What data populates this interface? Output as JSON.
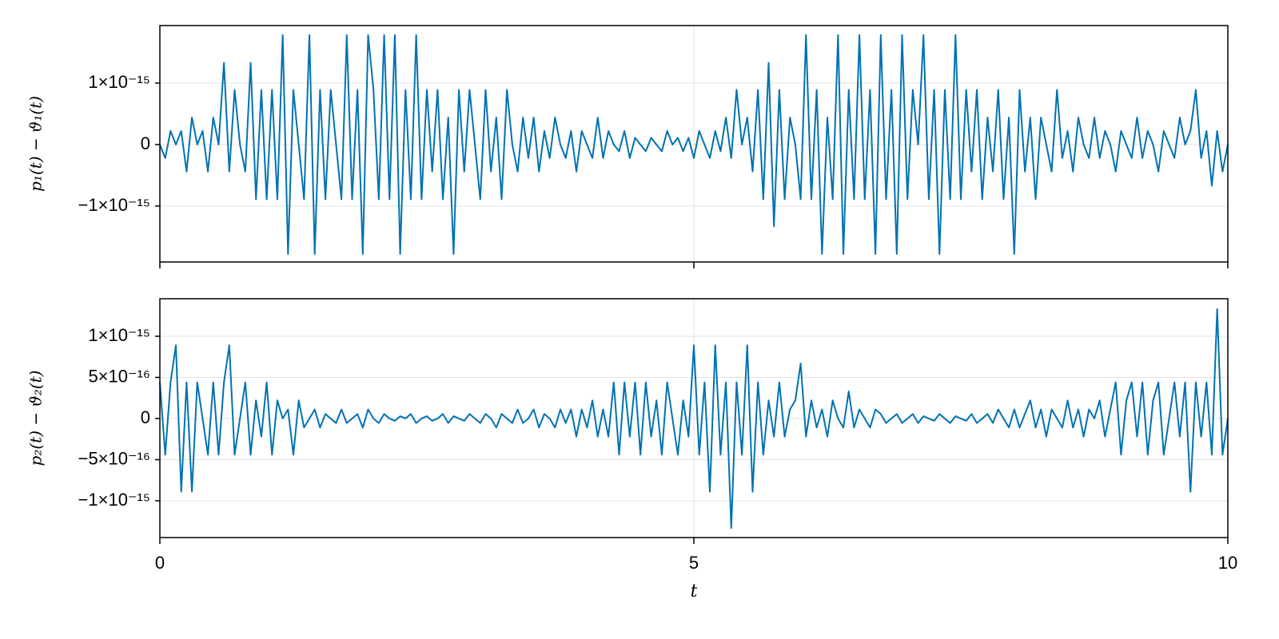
{
  "chart_data": [
    {
      "type": "line",
      "ylabel": "p₁(t) − ϑ₁(t)",
      "color": "#0072b2",
      "grid": true,
      "xlim": [
        0,
        10
      ],
      "xticks": [
        0,
        5,
        10
      ],
      "ylim": [
        -1.91e-15,
        1.935e-15
      ],
      "yticks": [
        {
          "value": -1e-15,
          "label": "−1×10⁻¹⁵"
        },
        0,
        {
          "value": 1e-15,
          "label": "1×10⁻¹⁵"
        }
      ],
      "x": [
        0,
        0.05,
        0.1,
        0.15,
        0.2,
        0.25,
        0.3,
        0.35,
        0.4,
        0.45,
        0.5,
        0.55,
        0.6,
        0.65,
        0.7,
        0.75,
        0.8,
        0.85,
        0.9,
        0.95,
        1,
        1.05,
        1.1,
        1.15,
        1.2,
        1.25,
        1.3,
        1.35,
        1.4,
        1.45,
        1.5,
        1.55,
        1.6,
        1.65,
        1.7,
        1.75,
        1.8,
        1.85,
        1.9,
        1.95,
        2,
        2.05,
        2.1,
        2.15,
        2.2,
        2.25,
        2.3,
        2.35,
        2.4,
        2.45,
        2.5,
        2.55,
        2.6,
        2.65,
        2.7,
        2.75,
        2.8,
        2.85,
        2.9,
        2.95,
        3,
        3.05,
        3.1,
        3.15,
        3.2,
        3.25,
        3.3,
        3.35,
        3.4,
        3.45,
        3.5,
        3.55,
        3.6,
        3.65,
        3.7,
        3.75,
        3.8,
        3.85,
        3.9,
        3.95,
        4,
        4.05,
        4.1,
        4.15,
        4.2,
        4.25,
        4.3,
        4.35,
        4.4,
        4.45,
        4.5,
        4.55,
        4.6,
        4.65,
        4.7,
        4.75,
        4.8,
        4.85,
        4.9,
        4.95,
        5,
        5.05,
        5.1,
        5.15,
        5.2,
        5.25,
        5.3,
        5.35,
        5.4,
        5.45,
        5.5,
        5.55,
        5.6,
        5.65,
        5.7,
        5.75,
        5.8,
        5.85,
        5.9,
        5.95,
        6,
        6.05,
        6.1,
        6.15,
        6.2,
        6.25,
        6.3,
        6.35,
        6.4,
        6.45,
        6.5,
        6.55,
        6.6,
        6.65,
        6.7,
        6.75,
        6.8,
        6.85,
        6.9,
        6.95,
        7,
        7.05,
        7.1,
        7.15,
        7.2,
        7.25,
        7.3,
        7.35,
        7.4,
        7.45,
        7.5,
        7.55,
        7.6,
        7.65,
        7.7,
        7.75,
        7.8,
        7.85,
        7.9,
        7.95,
        8,
        8.05,
        8.1,
        8.15,
        8.2,
        8.25,
        8.3,
        8.35,
        8.4,
        8.45,
        8.5,
        8.55,
        8.6,
        8.65,
        8.7,
        8.75,
        8.8,
        8.85,
        8.9,
        8.95,
        9,
        9.05,
        9.1,
        9.15,
        9.2,
        9.25,
        9.3,
        9.35,
        9.4,
        9.45,
        9.5,
        9.55,
        9.6,
        9.65,
        9.7,
        9.75,
        9.8,
        9.85,
        9.9,
        9.95,
        10
      ],
      "values": [
        0,
        -2.2e-16,
        2.2e-16,
        0,
        2.2e-16,
        -4.4e-16,
        4.4e-16,
        0,
        2.2e-16,
        -4.4e-16,
        4.4e-16,
        0,
        1.33e-15,
        -4.4e-16,
        8.9e-16,
        0,
        -4.4e-16,
        1.33e-15,
        -8.9e-16,
        8.9e-16,
        -8.9e-16,
        8.9e-16,
        -8.9e-16,
        1.78e-15,
        -1.78e-15,
        8.9e-16,
        0,
        -8.9e-16,
        1.78e-15,
        -1.78e-15,
        8.9e-16,
        -8.9e-16,
        8.9e-16,
        0,
        -8.9e-16,
        1.78e-15,
        -8.9e-16,
        8.9e-16,
        -1.78e-15,
        1.78e-15,
        8.9e-16,
        -8.9e-16,
        1.78e-15,
        -8.9e-16,
        1.78e-15,
        -1.78e-15,
        8.9e-16,
        -8.9e-16,
        1.78e-15,
        -8.9e-16,
        8.9e-16,
        -4.4e-16,
        8.9e-16,
        -8.9e-16,
        4.4e-16,
        -1.78e-15,
        8.9e-16,
        -4.4e-16,
        8.9e-16,
        0,
        -8.9e-16,
        8.9e-16,
        -4.4e-16,
        4.4e-16,
        -8.9e-16,
        8.9e-16,
        0,
        -4.4e-16,
        4.4e-16,
        -2.2e-16,
        4.4e-16,
        -4.4e-16,
        2.2e-16,
        -2.2e-16,
        4.4e-16,
        0,
        -2.2e-16,
        2.2e-16,
        -4.4e-16,
        2.2e-16,
        0,
        -2.2e-16,
        4.4e-16,
        -2.2e-16,
        2.2e-16,
        0,
        -1.1e-16,
        2.2e-16,
        -2.2e-16,
        1.1e-16,
        0,
        -1.1e-16,
        1.1e-16,
        0,
        -1.1e-16,
        2.2e-16,
        0,
        1.1e-16,
        -1.1e-16,
        1.1e-16,
        -2.2e-16,
        2.2e-16,
        0,
        -2.2e-16,
        2.2e-16,
        -1.1e-16,
        4.4e-16,
        -2.2e-16,
        8.9e-16,
        0,
        4.4e-16,
        -4.4e-16,
        8.9e-16,
        -8.9e-16,
        1.33e-15,
        -1.33e-15,
        8.9e-16,
        -8.9e-16,
        4.4e-16,
        0,
        -8.9e-16,
        1.78e-15,
        -8.9e-16,
        8.9e-16,
        -1.78e-15,
        4.4e-16,
        -8.9e-16,
        1.78e-15,
        -1.78e-15,
        8.9e-16,
        -8.9e-16,
        1.78e-15,
        -8.9e-16,
        8.9e-16,
        -1.78e-15,
        1.78e-15,
        -8.9e-16,
        8.9e-16,
        -1.78e-15,
        1.78e-15,
        -8.9e-16,
        8.9e-16,
        0,
        1.78e-15,
        -8.9e-16,
        8.9e-16,
        -1.78e-15,
        8.9e-16,
        -8.9e-16,
        1.78e-15,
        -8.9e-16,
        8.9e-16,
        -4.4e-16,
        8.9e-16,
        -8.9e-16,
        4.4e-16,
        -4.4e-16,
        8.9e-16,
        -8.9e-16,
        4.4e-16,
        -1.78e-15,
        8.9e-16,
        -4.4e-16,
        4.4e-16,
        -8.9e-16,
        4.4e-16,
        0,
        -4.4e-16,
        8.9e-16,
        -2.2e-16,
        2.2e-16,
        -4.4e-16,
        4.4e-16,
        0,
        -2.2e-16,
        4.4e-16,
        -2.2e-16,
        2.2e-16,
        0,
        -4.4e-16,
        2.2e-16,
        0,
        -2.2e-16,
        4.4e-16,
        -2.2e-16,
        2.2e-16,
        0,
        -4.4e-16,
        2.2e-16,
        0,
        -2.2e-16,
        4.4e-16,
        0,
        2.2e-16,
        8.9e-16,
        -2.2e-16,
        2.2e-16,
        -6.7e-16,
        2.2e-16,
        -4.4e-16,
        0
      ]
    },
    {
      "type": "line",
      "ylabel": "p₂(t) − ϑ₂(t)",
      "xlabel": "t",
      "color": "#0072b2",
      "grid": true,
      "xlim": [
        0,
        10
      ],
      "xticks": [
        0,
        5,
        10
      ],
      "ylim": [
        -1.447e-15,
        1.456e-15
      ],
      "yticks": [
        {
          "value": -1e-15,
          "label": "−1×10⁻¹⁵"
        },
        {
          "value": -5e-16,
          "label": "−5×10⁻¹⁶"
        },
        0,
        {
          "value": 5e-16,
          "label": "5×10⁻¹⁶"
        },
        {
          "value": 1e-15,
          "label": "1×10⁻¹⁵"
        }
      ],
      "x": [
        0,
        0.05,
        0.1,
        0.15,
        0.2,
        0.25,
        0.3,
        0.35,
        0.4,
        0.45,
        0.5,
        0.55,
        0.6,
        0.65,
        0.7,
        0.75,
        0.8,
        0.85,
        0.9,
        0.95,
        1,
        1.05,
        1.1,
        1.15,
        1.2,
        1.25,
        1.3,
        1.35,
        1.4,
        1.45,
        1.5,
        1.55,
        1.6,
        1.65,
        1.7,
        1.75,
        1.8,
        1.85,
        1.9,
        1.95,
        2,
        2.05,
        2.1,
        2.15,
        2.2,
        2.25,
        2.3,
        2.35,
        2.4,
        2.45,
        2.5,
        2.55,
        2.6,
        2.65,
        2.7,
        2.75,
        2.8,
        2.85,
        2.9,
        2.95,
        3,
        3.05,
        3.1,
        3.15,
        3.2,
        3.25,
        3.3,
        3.35,
        3.4,
        3.45,
        3.5,
        3.55,
        3.6,
        3.65,
        3.7,
        3.75,
        3.8,
        3.85,
        3.9,
        3.95,
        4,
        4.05,
        4.1,
        4.15,
        4.2,
        4.25,
        4.3,
        4.35,
        4.4,
        4.45,
        4.5,
        4.55,
        4.6,
        4.65,
        4.7,
        4.75,
        4.8,
        4.85,
        4.9,
        4.95,
        5,
        5.05,
        5.1,
        5.15,
        5.2,
        5.25,
        5.3,
        5.35,
        5.4,
        5.45,
        5.5,
        5.55,
        5.6,
        5.65,
        5.7,
        5.75,
        5.8,
        5.85,
        5.9,
        5.95,
        6,
        6.05,
        6.1,
        6.15,
        6.2,
        6.25,
        6.3,
        6.35,
        6.4,
        6.45,
        6.5,
        6.55,
        6.6,
        6.65,
        6.7,
        6.75,
        6.8,
        6.85,
        6.9,
        6.95,
        7,
        7.05,
        7.1,
        7.15,
        7.2,
        7.25,
        7.3,
        7.35,
        7.4,
        7.45,
        7.5,
        7.55,
        7.6,
        7.65,
        7.7,
        7.75,
        7.8,
        7.85,
        7.9,
        7.95,
        8,
        8.05,
        8.1,
        8.15,
        8.2,
        8.25,
        8.3,
        8.35,
        8.4,
        8.45,
        8.5,
        8.55,
        8.6,
        8.65,
        8.7,
        8.75,
        8.8,
        8.85,
        8.9,
        8.95,
        9,
        9.05,
        9.1,
        9.15,
        9.2,
        9.25,
        9.3,
        9.35,
        9.4,
        9.45,
        9.5,
        9.55,
        9.6,
        9.65,
        9.7,
        9.75,
        9.8,
        9.85,
        9.9,
        9.95,
        10
      ],
      "values": [
        4.4e-16,
        -4.4e-16,
        4.4e-16,
        8.9e-16,
        -8.9e-16,
        4.4e-16,
        -8.9e-16,
        4.4e-16,
        0,
        -4.4e-16,
        4.4e-16,
        -4.4e-16,
        4.4e-16,
        8.9e-16,
        -4.4e-16,
        0,
        4.4e-16,
        -4.4e-16,
        2.2e-16,
        -2.2e-16,
        4.4e-16,
        -4.4e-16,
        2.2e-16,
        0,
        1.1e-16,
        -4.4e-16,
        2.2e-16,
        -1.1e-16,
        0,
        1.1e-16,
        -1.1e-16,
        5.5e-17,
        0,
        -5.5e-17,
        1.1e-16,
        -5.5e-17,
        0,
        5.5e-17,
        -1.1e-16,
        1.1e-16,
        0,
        -5.5e-17,
        5.5e-17,
        0,
        -2.8e-17,
        2.8e-17,
        0,
        5.5e-17,
        -5.5e-17,
        0,
        2.8e-17,
        -2.8e-17,
        0,
        5.5e-17,
        -5.5e-17,
        2.8e-17,
        0,
        -2.8e-17,
        5.5e-17,
        0,
        -5.5e-17,
        5.5e-17,
        0,
        -1.1e-16,
        5.5e-17,
        0,
        -5.5e-17,
        1.1e-16,
        -5.5e-17,
        0,
        1.1e-16,
        -1.1e-16,
        5.5e-17,
        0,
        -1.1e-16,
        1.1e-16,
        -5.5e-17,
        1.1e-16,
        -2.2e-16,
        1.1e-16,
        -1.1e-16,
        2.2e-16,
        -2.2e-16,
        1.1e-16,
        -2.2e-16,
        4.4e-16,
        -4.4e-16,
        4.4e-16,
        -2.2e-16,
        4.4e-16,
        -4.4e-16,
        4.4e-16,
        -2.2e-16,
        2.2e-16,
        -4.4e-16,
        4.4e-16,
        0,
        -4.4e-16,
        2.2e-16,
        -2.2e-16,
        8.9e-16,
        -4.4e-16,
        4.4e-16,
        -8.9e-16,
        8.9e-16,
        -4.4e-16,
        4.4e-16,
        -1.33e-15,
        4.4e-16,
        -4.4e-16,
        8.9e-16,
        -8.9e-16,
        4.4e-16,
        -4.4e-16,
        2.2e-16,
        -2.2e-16,
        4.4e-16,
        -2.2e-16,
        1.1e-16,
        2.2e-16,
        6.7e-16,
        -2.2e-16,
        2.2e-16,
        -1.1e-16,
        1.1e-16,
        -2.2e-16,
        2.2e-16,
        0,
        -1.1e-16,
        3.3e-16,
        -1.1e-16,
        1.1e-16,
        0,
        -1.1e-16,
        1.1e-16,
        5.5e-17,
        -5.5e-17,
        0,
        5.5e-17,
        -5.5e-17,
        0,
        5.5e-17,
        -5.5e-17,
        2.8e-17,
        0,
        -2.8e-17,
        5.5e-17,
        0,
        -5.5e-17,
        2.8e-17,
        0,
        -2.8e-17,
        5.5e-17,
        -5.5e-17,
        0,
        5.5e-17,
        -5.5e-17,
        1.1e-16,
        0,
        -1.1e-16,
        1.1e-16,
        -1.1e-16,
        5.5e-17,
        2.2e-16,
        -1.1e-16,
        1.1e-16,
        -2.2e-16,
        1.1e-16,
        0,
        -1.1e-16,
        2.2e-16,
        -1.1e-16,
        1.1e-16,
        -2.2e-16,
        1.1e-16,
        0,
        2.2e-16,
        -2.2e-16,
        1.1e-16,
        4.4e-16,
        -4.4e-16,
        2.2e-16,
        4.4e-16,
        -2.2e-16,
        4.4e-16,
        -4.4e-16,
        2.2e-16,
        4.4e-16,
        -4.4e-16,
        0,
        4.4e-16,
        -2.2e-16,
        4.4e-16,
        -8.9e-16,
        4.4e-16,
        -2.2e-16,
        4.4e-16,
        -4.4e-16,
        1.33e-15,
        -4.4e-16,
        0
      ]
    }
  ]
}
